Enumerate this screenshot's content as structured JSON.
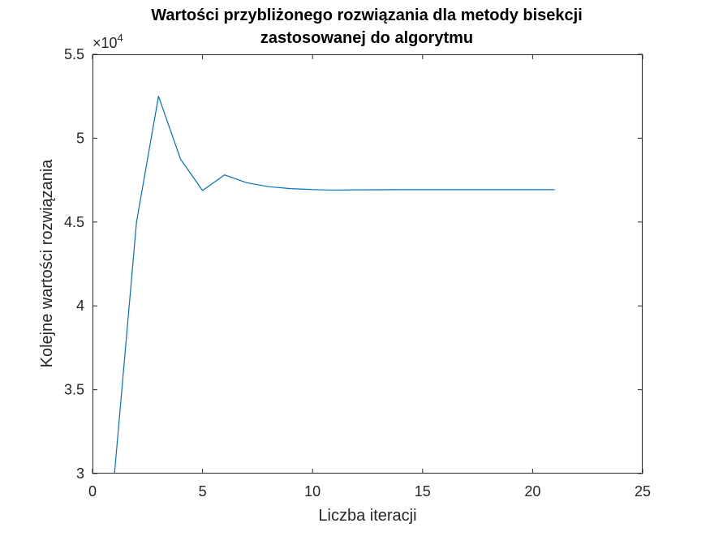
{
  "chart_data": {
    "type": "line",
    "title": "Wartości przybliżonego rozwiązania dla metody bisekcji zastosowanej do algorytmu",
    "title_lines": [
      "Wartości przybliżonego rozwiązania dla metody bisekcji",
      "zastosowanej do algorytmu"
    ],
    "xlabel": "Liczba iteracji",
    "ylabel": "Kolejne wartości rozwiązania",
    "y_exponent_label": "×10^4",
    "xlim": [
      0,
      25
    ],
    "ylim": [
      30000,
      55000
    ],
    "x_ticks": [
      0,
      5,
      10,
      15,
      20,
      25
    ],
    "x_tick_labels": [
      "0",
      "5",
      "10",
      "15",
      "20",
      "25"
    ],
    "y_ticks": [
      30000,
      35000,
      40000,
      45000,
      50000,
      55000
    ],
    "y_tick_labels": [
      "3",
      "3.5",
      "4",
      "4.5",
      "5",
      "5.5"
    ],
    "grid": false,
    "box": true,
    "line_color": "#0072BD",
    "series": [
      {
        "x": [
          1,
          2,
          3,
          4,
          5,
          6,
          7,
          8,
          9,
          10,
          11,
          12,
          13,
          14,
          15,
          16,
          17,
          18,
          19,
          20,
          21
        ],
        "values": [
          30000,
          45000,
          52500,
          48750,
          46875,
          47813,
          47344,
          47109,
          46992,
          46934,
          46904,
          46919,
          46926,
          46930,
          46932,
          46931,
          46931,
          46931,
          46931,
          46931,
          46931
        ]
      }
    ]
  }
}
